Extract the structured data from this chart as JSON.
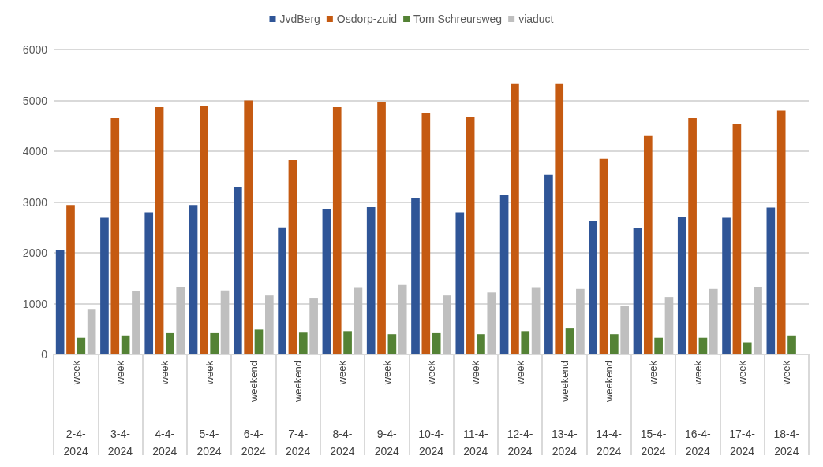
{
  "chart_data": {
    "type": "bar",
    "categories": [
      "2-4-2024",
      "3-4-2024",
      "4-4-2024",
      "5-4-2024",
      "6-4-2024",
      "7-4-2024",
      "8-4-2024",
      "9-4-2024",
      "10-4-2024",
      "11-4-2024",
      "12-4-2024",
      "13-4-2024",
      "14-4-2024",
      "15-4-2024",
      "16-4-2024",
      "17-4-2024",
      "18-4-2024"
    ],
    "series": [
      {
        "name": "JvdBerg",
        "color": "#2f5597",
        "values": [
          2050,
          2690,
          2800,
          2940,
          3300,
          2500,
          2870,
          2900,
          3080,
          2800,
          3140,
          3540,
          2630,
          2480,
          2700,
          2690,
          2890
        ]
      },
      {
        "name": "Osdorp-zuid",
        "color": "#c55a11",
        "values": [
          2940,
          4650,
          4870,
          4900,
          5000,
          3830,
          4870,
          4960,
          4760,
          4670,
          5320,
          5320,
          3850,
          4300,
          4650,
          4540,
          4800
        ]
      },
      {
        "name": "Tom Schreursweg",
        "color": "#548235",
        "values": [
          330,
          360,
          420,
          420,
          490,
          430,
          460,
          400,
          420,
          400,
          460,
          510,
          400,
          330,
          330,
          240,
          360
        ]
      },
      {
        "name": "viaduct",
        "color": "#bfbfbf",
        "values": [
          880,
          1250,
          1320,
          1260,
          1160,
          1100,
          1310,
          1370,
          1160,
          1220,
          1310,
          1290,
          960,
          1130,
          1290,
          1330,
          null
        ]
      }
    ],
    "annotations": [
      "week",
      "week",
      "week",
      "week",
      "weekend",
      "weekend",
      "week",
      "week",
      "week",
      "week",
      "week",
      "weekend",
      "weekend",
      "week",
      "week",
      "week",
      "week"
    ],
    "ylim": [
      0,
      6000
    ],
    "yticks": [
      0,
      1000,
      2000,
      3000,
      4000,
      5000,
      6000
    ],
    "grid": "y",
    "legend": "top"
  }
}
